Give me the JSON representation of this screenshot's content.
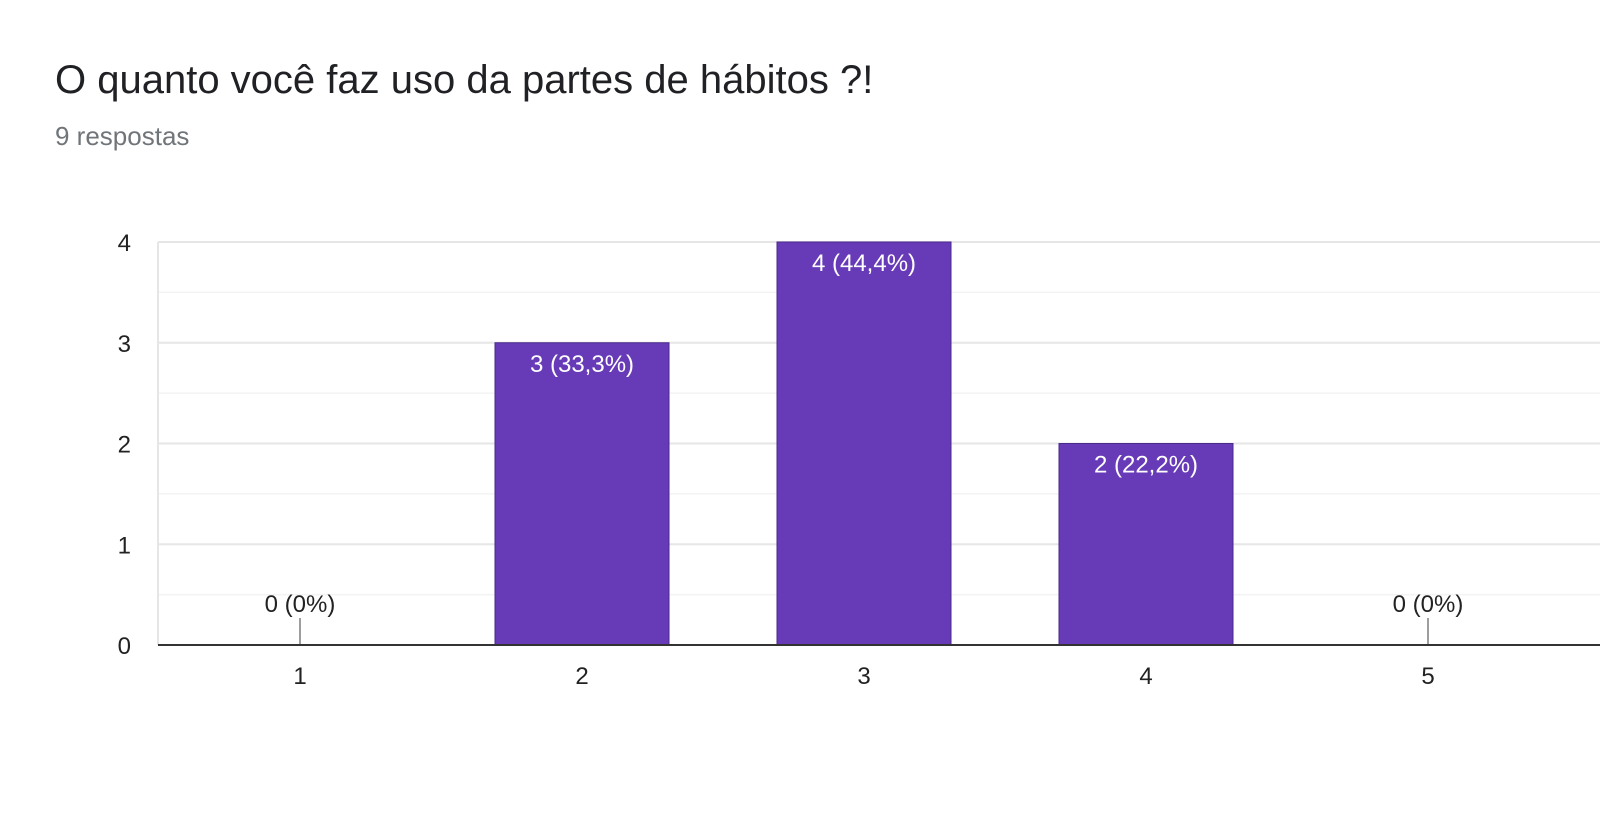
{
  "header": {
    "title": "O quanto você faz uso da partes de hábitos ?!",
    "responses": "9 respostas"
  },
  "colors": {
    "bar": "#673ab7",
    "grid_major": "#e6e6e6",
    "grid_minor": "#f3f3f3",
    "axis": "#333333",
    "label_inside": "#ffffff",
    "label_outside": "#222222"
  },
  "chart_data": {
    "type": "bar",
    "categories": [
      "1",
      "2",
      "3",
      "4",
      "5"
    ],
    "values": [
      0,
      3,
      4,
      2,
      0
    ],
    "data_labels": [
      "0 (0%)",
      "3 (33,3%)",
      "4 (44,4%)",
      "2 (22,2%)",
      "0 (0%)"
    ],
    "ylim": [
      0,
      4
    ],
    "yticks": [
      "0",
      "1",
      "2",
      "3",
      "4"
    ],
    "grid": true
  }
}
